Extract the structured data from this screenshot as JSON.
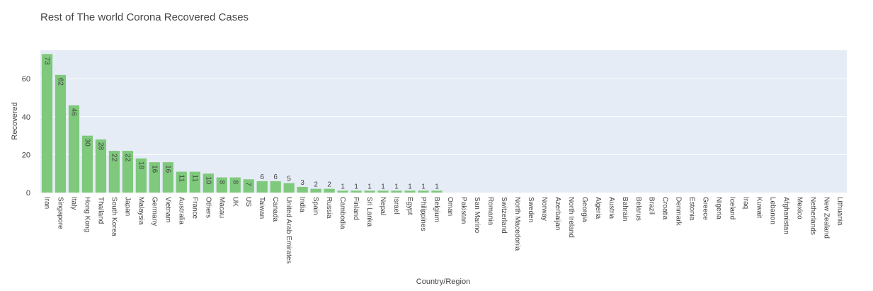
{
  "chart_data": {
    "type": "bar",
    "title": "Rest of The world Corona Recovered Cases",
    "xlabel": "Country/Region",
    "ylabel": "Recovered",
    "ylim": [
      0,
      75
    ],
    "yticks": [
      0,
      20,
      40,
      60
    ],
    "grid": true,
    "bar_color": "#7ec97b",
    "plot_background": "#e5ecf6",
    "categories": [
      "Iran",
      "Singapore",
      "Italy",
      "Hong Kong",
      "Thailand",
      "South Korea",
      "Japan",
      "Malaysia",
      "Germany",
      "Vietnam",
      "Australia",
      "France",
      "Others",
      "Macau",
      "UK",
      "US",
      "Taiwan",
      "Canada",
      "United Arab Emirates",
      "India",
      "Spain",
      "Russia",
      "Cambodia",
      "Finland",
      "Sri Lanka",
      "Nepal",
      "Israel",
      "Egypt",
      "Philippines",
      "Belgium",
      "Oman",
      "Pakistan",
      "San Marino",
      "Romania",
      "Switzerland",
      "North Macedonia",
      "Sweden",
      "Norway",
      "Azerbaijan",
      "North Ireland",
      "Georgia",
      "Algeria",
      "Austria",
      "Bahrain",
      "Belarus",
      "Brazil",
      "Croatia",
      "Denmark",
      "Estonia",
      "Greece",
      "Nigeria",
      "Iceland",
      "Iraq",
      "Kuwait",
      "Lebanon",
      "Afghanistan",
      "Mexico",
      "Netherlands",
      "New Zealand",
      "Lithuania"
    ],
    "values": [
      73,
      62,
      46,
      30,
      28,
      22,
      22,
      18,
      16,
      16,
      11,
      11,
      10,
      8,
      8,
      7,
      6,
      6,
      5,
      3,
      2,
      2,
      1,
      1,
      1,
      1,
      1,
      1,
      1,
      1,
      0,
      0,
      0,
      0,
      0,
      0,
      0,
      0,
      0,
      0,
      0,
      0,
      0,
      0,
      0,
      0,
      0,
      0,
      0,
      0,
      0,
      0,
      0,
      0,
      0,
      0,
      0,
      0,
      0,
      0
    ]
  }
}
